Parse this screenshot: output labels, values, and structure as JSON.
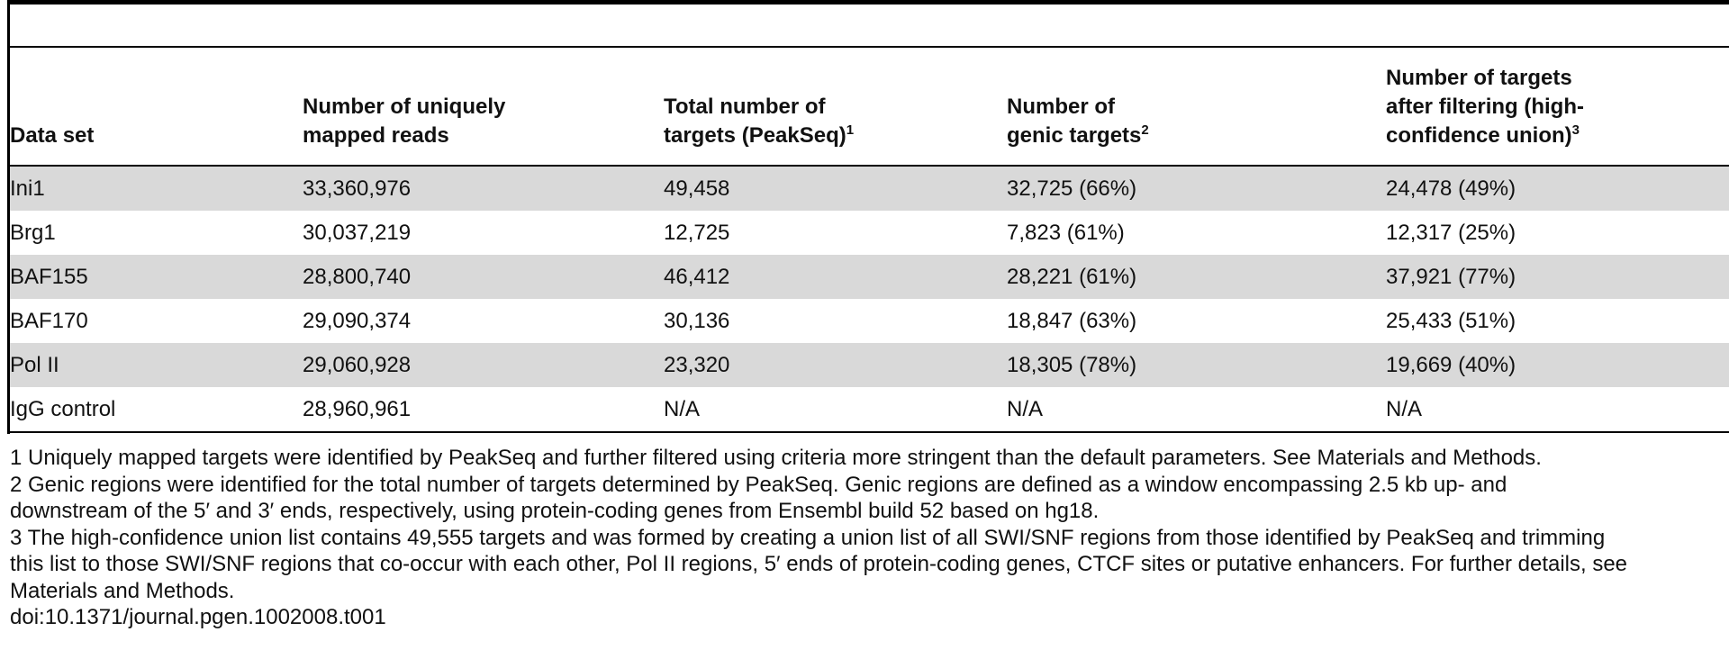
{
  "table": {
    "headers": [
      {
        "text": "Data set",
        "sup": ""
      },
      {
        "text": "Number of uniquely\nmapped reads",
        "sup": ""
      },
      {
        "text": "Total number of\ntargets (PeakSeq)",
        "sup": "1"
      },
      {
        "text": "Number of\ngenic targets",
        "sup": "2"
      },
      {
        "text": "Number of targets\nafter filtering (high-\nconfidence union)",
        "sup": "3"
      }
    ],
    "rows": [
      [
        "Ini1",
        "33,360,976",
        "49,458",
        "32,725 (66%)",
        "24,478 (49%)"
      ],
      [
        "Brg1",
        "30,037,219",
        "12,725",
        "7,823 (61%)",
        "12,317 (25%)"
      ],
      [
        "BAF155",
        "28,800,740",
        "46,412",
        "28,221 (61%)",
        "37,921 (77%)"
      ],
      [
        "BAF170",
        "29,090,374",
        "30,136",
        "18,847 (63%)",
        "25,433 (51%)"
      ],
      [
        "Pol II",
        "29,060,928",
        "23,320",
        "18,305 (78%)",
        "19,669 (40%)"
      ],
      [
        "IgG control",
        "28,960,961",
        "N/A",
        "N/A",
        "N/A"
      ]
    ]
  },
  "footnotes": [
    "1 Uniquely mapped targets were identified by PeakSeq and further filtered using criteria more stringent than the default parameters. See Materials and Methods.",
    "2 Genic regions were identified for the total number of targets determined by PeakSeq. Genic regions are defined as a window encompassing 2.5 kb up- and\ndownstream of the 5′ and 3′ ends, respectively, using protein-coding genes from Ensembl build 52 based on hg18.",
    "3 The high-confidence union list contains 49,555 targets and was formed by creating a union list of all SWI/SNF regions from those identified by PeakSeq and trimming\nthis list to those SWI/SNF regions that co-occur with each other, Pol II regions, 5′ ends of protein-coding genes, CTCF sites or putative enhancers. For further details, see\nMaterials and Methods."
  ],
  "doi": "doi:10.1371/journal.pgen.1002008.t001"
}
